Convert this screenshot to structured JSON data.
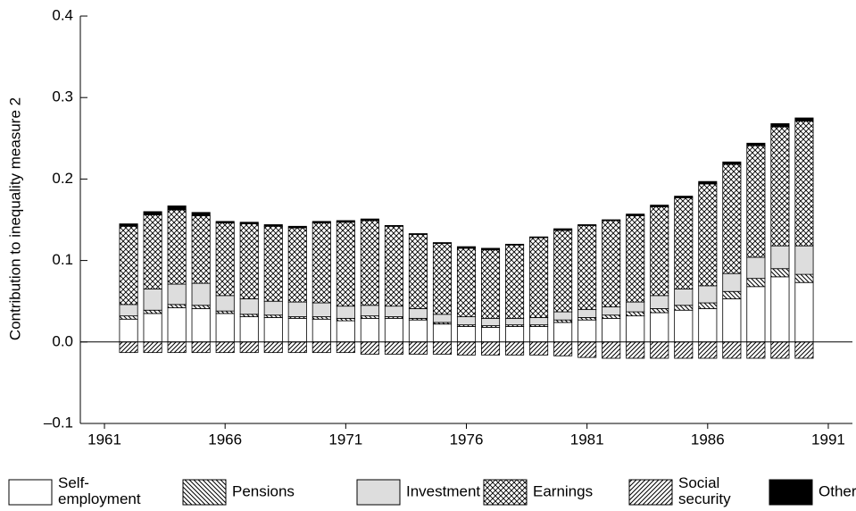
{
  "chart_data": {
    "type": "stacked-bar",
    "y_label": "Contribution to inequality measure 2",
    "x": [
      1962,
      1963,
      1964,
      1965,
      1966,
      1967,
      1968,
      1969,
      1970,
      1971,
      1972,
      1973,
      1974,
      1975,
      1976,
      1977,
      1978,
      1979,
      1980,
      1981,
      1982,
      1983,
      1984,
      1985,
      1986,
      1987,
      1988,
      1989,
      1990
    ],
    "xlim": [
      1960,
      1992
    ],
    "xticks": [
      1961,
      1966,
      1971,
      1976,
      1981,
      1986,
      1991
    ],
    "ylim": [
      -0.1,
      0.4
    ],
    "yticks": [
      {
        "value": -0.1,
        "label": "–0.1"
      },
      {
        "value": 0,
        "label": "0.0"
      },
      0.1,
      0.2,
      0.3,
      0.4
    ],
    "series": [
      {
        "name": "Self-\nemployment",
        "color": "#ffffff",
        "pattern": "solid",
        "values": [
          0.028,
          0.035,
          0.042,
          0.041,
          0.035,
          0.031,
          0.03,
          0.029,
          0.028,
          0.026,
          0.029,
          0.029,
          0.027,
          0.022,
          0.019,
          0.018,
          0.019,
          0.019,
          0.024,
          0.027,
          0.029,
          0.032,
          0.036,
          0.039,
          0.041,
          0.053,
          0.068,
          0.08,
          0.073
        ]
      },
      {
        "name": "Pensions",
        "color": "#000000",
        "pattern": "backslash",
        "values": [
          0.004,
          0.004,
          0.004,
          0.004,
          0.003,
          0.003,
          0.003,
          0.002,
          0.003,
          0.003,
          0.003,
          0.002,
          0.002,
          0.002,
          0.002,
          0.002,
          0.002,
          0.002,
          0.003,
          0.003,
          0.004,
          0.005,
          0.005,
          0.006,
          0.007,
          0.009,
          0.01,
          0.01,
          0.01
        ]
      },
      {
        "name": "Investment",
        "color": "#dddddd",
        "pattern": "solid",
        "values": [
          0.014,
          0.026,
          0.025,
          0.027,
          0.019,
          0.019,
          0.017,
          0.018,
          0.017,
          0.015,
          0.013,
          0.013,
          0.012,
          0.01,
          0.01,
          0.009,
          0.008,
          0.009,
          0.01,
          0.01,
          0.01,
          0.012,
          0.016,
          0.02,
          0.021,
          0.022,
          0.026,
          0.028,
          0.035
        ]
      },
      {
        "name": "Earnings",
        "color": "#000000",
        "pattern": "crosshatch",
        "values": [
          0.096,
          0.091,
          0.091,
          0.083,
          0.089,
          0.092,
          0.092,
          0.091,
          0.098,
          0.103,
          0.104,
          0.098,
          0.091,
          0.087,
          0.084,
          0.084,
          0.09,
          0.098,
          0.1,
          0.103,
          0.106,
          0.106,
          0.109,
          0.112,
          0.125,
          0.134,
          0.137,
          0.146,
          0.153
        ]
      },
      {
        "name": "Social\nsecurity",
        "color": "#000000",
        "pattern": "slash",
        "values": [
          -0.013,
          -0.013,
          -0.013,
          -0.013,
          -0.013,
          -0.013,
          -0.013,
          -0.013,
          -0.013,
          -0.013,
          -0.015,
          -0.015,
          -0.015,
          -0.015,
          -0.016,
          -0.016,
          -0.016,
          -0.016,
          -0.017,
          -0.019,
          -0.02,
          -0.02,
          -0.02,
          -0.02,
          -0.02,
          -0.02,
          -0.02,
          -0.02,
          -0.02
        ]
      },
      {
        "name": "Other",
        "color": "#000000",
        "pattern": "solid",
        "values": [
          0.003,
          0.004,
          0.005,
          0.004,
          0.002,
          0.002,
          0.002,
          0.002,
          0.002,
          0.002,
          0.002,
          0.001,
          0.001,
          0.001,
          0.002,
          0.002,
          0.001,
          0.001,
          0.002,
          0.001,
          0.001,
          0.002,
          0.002,
          0.002,
          0.003,
          0.003,
          0.003,
          0.004,
          0.004
        ]
      }
    ]
  }
}
